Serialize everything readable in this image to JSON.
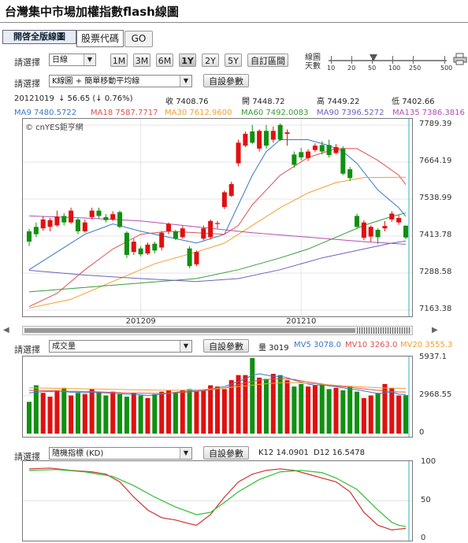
{
  "title": "台灣集中市場加權指數flash線圖",
  "tabs": {
    "active": "開啓全版線圖",
    "code": "股票代碼",
    "go": "GO"
  },
  "controls": {
    "select_label": "請選擇",
    "period_value": "日線",
    "range_buttons": [
      "1M",
      "3M",
      "6M",
      "1Y",
      "2Y",
      "5Y",
      "自訂區間"
    ],
    "active_range": "1Y",
    "days_label_1": "線圖",
    "days_label_2": "天數",
    "days_ticks": [
      "10",
      "20",
      "50",
      "100",
      "250",
      "500"
    ],
    "days_selected": "50",
    "indicator_value": "K線圖 + 簡單移動平均線",
    "param_button": "自設參數"
  },
  "quote": {
    "date": "20121019",
    "change": "↓ 56.65 (↓ 0.76%)",
    "close_label": "收",
    "close": "7408.76",
    "open_label": "開",
    "open": "7448.72",
    "high_label": "高",
    "high": "7449.22",
    "low_label": "低",
    "low": "7402.66"
  },
  "ma_legend": [
    {
      "label": "MA9 7480.5722",
      "color": "#3a78c8"
    },
    {
      "label": "MA18 7587.7717",
      "color": "#e05050"
    },
    {
      "label": "MA30 7612.9600",
      "color": "#f0a030"
    },
    {
      "label": "MA60 7492.0083",
      "color": "#3a9a3a"
    },
    {
      "label": "MA90 7396.5272",
      "color": "#7060c0"
    },
    {
      "label": "MA135 7386.3816",
      "color": "#b050b0"
    }
  ],
  "watermark": "© cnYES鉅亨網",
  "price_axis": [
    "7789.39",
    "7664.19",
    "7538.99",
    "7413.78",
    "7288.58",
    "7163.38"
  ],
  "price_range": [
    7163.38,
    7789.39
  ],
  "x_labels": [
    "201209",
    "201210"
  ],
  "candles": [
    [
      7430,
      7395,
      7438,
      7380
    ],
    [
      7445,
      7420,
      7460,
      7410
    ],
    [
      7440,
      7470,
      7480,
      7432
    ],
    [
      7445,
      7468,
      7475,
      7430
    ],
    [
      7450,
      7480,
      7500,
      7445
    ],
    [
      7482,
      7460,
      7492,
      7450
    ],
    [
      7460,
      7500,
      7510,
      7455
    ],
    [
      7470,
      7430,
      7475,
      7420
    ],
    [
      7430,
      7460,
      7470,
      7425
    ],
    [
      7478,
      7500,
      7510,
      7470
    ],
    [
      7500,
      7482,
      7510,
      7474
    ],
    [
      7478,
      7468,
      7488,
      7460
    ],
    [
      7470,
      7488,
      7498,
      7465
    ],
    [
      7495,
      7445,
      7500,
      7440
    ],
    [
      7425,
      7350,
      7430,
      7340
    ],
    [
      7360,
      7395,
      7405,
      7350
    ],
    [
      7372,
      7352,
      7380,
      7345
    ],
    [
      7355,
      7385,
      7392,
      7350
    ],
    [
      7388,
      7365,
      7395,
      7355
    ],
    [
      7375,
      7425,
      7430,
      7365
    ],
    [
      7430,
      7455,
      7460,
      7420
    ],
    [
      7430,
      7405,
      7435,
      7400
    ],
    [
      7410,
      7440,
      7448,
      7405
    ],
    [
      7372,
      7312,
      7380,
      7305
    ],
    [
      7318,
      7360,
      7365,
      7312
    ],
    [
      7405,
      7440,
      7450,
      7400
    ],
    [
      7410,
      7465,
      7470,
      7402
    ],
    [
      7455,
      7458,
      7465,
      7440
    ],
    [
      7512,
      7562,
      7568,
      7505
    ],
    [
      7550,
      7590,
      7598,
      7546
    ],
    [
      7660,
      7730,
      7740,
      7650
    ],
    [
      7720,
      7760,
      7768,
      7715
    ],
    [
      7768,
      7730,
      7790,
      7725
    ],
    [
      7710,
      7770,
      7775,
      7700
    ],
    [
      7770,
      7720,
      7790,
      7710
    ],
    [
      7740,
      7770,
      7785,
      7730
    ],
    [
      7790,
      7740,
      7795,
      7735
    ],
    [
      7760,
      7765,
      7775,
      7720
    ],
    [
      7690,
      7655,
      7700,
      7645
    ],
    [
      7698,
      7680,
      7712,
      7670
    ],
    [
      7678,
      7700,
      7708,
      7668
    ],
    [
      7705,
      7720,
      7728,
      7698
    ],
    [
      7722,
      7700,
      7735,
      7690
    ],
    [
      7722,
      7688,
      7740,
      7680
    ],
    [
      7695,
      7715,
      7725,
      7690
    ],
    [
      7710,
      7625,
      7718,
      7620
    ],
    [
      7640,
      7610,
      7648,
      7600
    ],
    [
      7482,
      7445,
      7490,
      7440
    ],
    [
      7408,
      7460,
      7468,
      7400
    ],
    [
      7412,
      7445,
      7450,
      7395
    ],
    [
      7435,
      7410,
      7440,
      7388
    ],
    [
      7440,
      7448,
      7465,
      7430
    ],
    [
      7470,
      7490,
      7498,
      7462
    ],
    [
      7460,
      7475,
      7485,
      7452
    ],
    [
      7449,
      7409,
      7450,
      7403
    ]
  ],
  "ma_series": [
    {
      "name": "MA9",
      "color": "#3a78c8",
      "pts": [
        [
          0,
          7300
        ],
        [
          4,
          7360
        ],
        [
          8,
          7420
        ],
        [
          12,
          7455
        ],
        [
          16,
          7430
        ],
        [
          20,
          7410
        ],
        [
          24,
          7390
        ],
        [
          28,
          7420
        ],
        [
          30,
          7520
        ],
        [
          32,
          7620
        ],
        [
          34,
          7700
        ],
        [
          36,
          7740
        ],
        [
          40,
          7740
        ],
        [
          43,
          7720
        ],
        [
          45,
          7700
        ],
        [
          47,
          7660
        ],
        [
          50,
          7570
        ],
        [
          53,
          7510
        ],
        [
          54,
          7480
        ]
      ]
    },
    {
      "name": "MA18",
      "color": "#e05050",
      "pts": [
        [
          0,
          7175
        ],
        [
          4,
          7220
        ],
        [
          8,
          7300
        ],
        [
          12,
          7370
        ],
        [
          16,
          7420
        ],
        [
          20,
          7430
        ],
        [
          24,
          7425
        ],
        [
          28,
          7420
        ],
        [
          30,
          7450
        ],
        [
          32,
          7520
        ],
        [
          36,
          7620
        ],
        [
          40,
          7680
        ],
        [
          44,
          7710
        ],
        [
          47,
          7710
        ],
        [
          50,
          7670
        ],
        [
          53,
          7620
        ],
        [
          54,
          7588
        ]
      ]
    },
    {
      "name": "MA30",
      "color": "#f0a030",
      "pts": [
        [
          0,
          7170
        ],
        [
          6,
          7200
        ],
        [
          12,
          7260
        ],
        [
          18,
          7320
        ],
        [
          24,
          7360
        ],
        [
          28,
          7390
        ],
        [
          32,
          7450
        ],
        [
          36,
          7510
        ],
        [
          40,
          7560
        ],
        [
          44,
          7595
        ],
        [
          48,
          7612
        ],
        [
          54,
          7613
        ]
      ]
    },
    {
      "name": "MA60",
      "color": "#3a9a3a",
      "pts": [
        [
          0,
          7225
        ],
        [
          8,
          7240
        ],
        [
          16,
          7255
        ],
        [
          24,
          7270
        ],
        [
          30,
          7300
        ],
        [
          36,
          7340
        ],
        [
          40,
          7370
        ],
        [
          44,
          7410
        ],
        [
          48,
          7450
        ],
        [
          52,
          7480
        ],
        [
          54,
          7492
        ]
      ]
    },
    {
      "name": "MA90",
      "color": "#7060c0",
      "pts": [
        [
          0,
          7298
        ],
        [
          8,
          7282
        ],
        [
          16,
          7270
        ],
        [
          24,
          7260
        ],
        [
          30,
          7270
        ],
        [
          36,
          7300
        ],
        [
          42,
          7340
        ],
        [
          48,
          7370
        ],
        [
          52,
          7390
        ],
        [
          54,
          7397
        ]
      ]
    },
    {
      "name": "MA135",
      "color": "#b050b0",
      "pts": [
        [
          0,
          7482
        ],
        [
          8,
          7475
        ],
        [
          16,
          7465
        ],
        [
          24,
          7445
        ],
        [
          32,
          7425
        ],
        [
          40,
          7410
        ],
        [
          48,
          7395
        ],
        [
          54,
          7386
        ]
      ]
    }
  ],
  "volume": {
    "select_value": "成交量",
    "param_button": "自設參數",
    "legend": [
      {
        "label": "量 3019",
        "color": "#222"
      },
      {
        "label": "MV5 3078.0",
        "color": "#3a78c8"
      },
      {
        "label": "MV10 3263.0",
        "color": "#e05050"
      },
      {
        "label": "MV20 3555.3",
        "color": "#f0a030"
      }
    ],
    "axis": [
      "5937.1",
      "2968.55",
      "0"
    ],
    "max": 5937.1,
    "values": [
      2500,
      3800,
      3200,
      2900,
      3400,
      3600,
      3000,
      3200,
      3100,
      3500,
      3300,
      3000,
      3300,
      3100,
      2900,
      3200,
      3000,
      2800,
      3100,
      3300,
      3400,
      3200,
      3400,
      3500,
      3300,
      3400,
      3800,
      3700,
      3500,
      4200,
      4600,
      4600,
      5937,
      4400,
      4300,
      4700,
      4600,
      4200,
      3700,
      3900,
      3700,
      3800,
      3900,
      3500,
      3600,
      3400,
      3700,
      3300,
      2800,
      3000,
      3200,
      3900,
      3600,
      3000,
      3019
    ],
    "mv5": [
      3200,
      3250,
      3300,
      3300,
      3350,
      3300,
      3250,
      3250,
      3200,
      3250,
      3200,
      3200,
      3150,
      3150,
      3100,
      3100,
      3050,
      3000,
      3050,
      3100,
      3150,
      3250,
      3300,
      3350,
      3350,
      3400,
      3500,
      3600,
      3700,
      3900,
      4100,
      4300,
      4600,
      4700,
      4600,
      4500,
      4500,
      4400,
      4200,
      4050,
      3900,
      3800,
      3850,
      3750,
      3700,
      3600,
      3500,
      3450,
      3350,
      3250,
      3150,
      3200,
      3250,
      3100,
      3078
    ],
    "mv10": [
      3400,
      3400,
      3380,
      3380,
      3360,
      3340,
      3330,
      3320,
      3300,
      3300,
      3280,
      3260,
      3240,
      3220,
      3200,
      3190,
      3180,
      3170,
      3160,
      3160,
      3170,
      3200,
      3240,
      3280,
      3320,
      3370,
      3430,
      3500,
      3600,
      3720,
      3850,
      3980,
      4100,
      4200,
      4250,
      4300,
      4320,
      4300,
      4250,
      4150,
      4050,
      3980,
      3900,
      3820,
      3750,
      3700,
      3640,
      3580,
      3520,
      3460,
      3400,
      3350,
      3300,
      3280,
      3263
    ],
    "mv20": [
      3600,
      3590,
      3580,
      3570,
      3560,
      3550,
      3540,
      3530,
      3520,
      3510,
      3500,
      3490,
      3480,
      3470,
      3460,
      3450,
      3440,
      3430,
      3420,
      3415,
      3410,
      3410,
      3420,
      3430,
      3450,
      3470,
      3500,
      3540,
      3580,
      3630,
      3690,
      3750,
      3810,
      3870,
      3920,
      3960,
      3990,
      4000,
      4000,
      3980,
      3950,
      3920,
      3880,
      3840,
      3800,
      3760,
      3720,
      3690,
      3660,
      3630,
      3600,
      3580,
      3570,
      3560,
      3555
    ]
  },
  "kd": {
    "select_value": "隨機指標 (KD)",
    "param_button": "自設參數",
    "legend": [
      {
        "label": "K12 14.0901",
        "color": "#d03030"
      },
      {
        "label": "D12 16.5478",
        "color": "#30c030"
      }
    ],
    "axis": [
      "100",
      "50",
      "0"
    ],
    "k": [
      [
        0,
        92
      ],
      [
        3,
        93
      ],
      [
        6,
        90
      ],
      [
        9,
        88
      ],
      [
        11,
        85
      ],
      [
        13,
        75
      ],
      [
        15,
        55
      ],
      [
        17,
        38
      ],
      [
        19,
        28
      ],
      [
        21,
        25
      ],
      [
        23,
        20
      ],
      [
        24,
        18
      ],
      [
        26,
        32
      ],
      [
        28,
        55
      ],
      [
        30,
        75
      ],
      [
        32,
        85
      ],
      [
        34,
        90
      ],
      [
        36,
        92
      ],
      [
        38,
        90
      ],
      [
        40,
        85
      ],
      [
        42,
        80
      ],
      [
        44,
        75
      ],
      [
        46,
        62
      ],
      [
        48,
        35
      ],
      [
        50,
        18
      ],
      [
        52,
        12
      ],
      [
        54,
        14
      ]
    ],
    "d": [
      [
        0,
        90
      ],
      [
        4,
        91
      ],
      [
        8,
        88
      ],
      [
        12,
        82
      ],
      [
        15,
        70
      ],
      [
        18,
        55
      ],
      [
        21,
        42
      ],
      [
        24,
        32
      ],
      [
        26,
        35
      ],
      [
        28,
        48
      ],
      [
        30,
        62
      ],
      [
        33,
        78
      ],
      [
        36,
        88
      ],
      [
        39,
        90
      ],
      [
        42,
        87
      ],
      [
        44,
        80
      ],
      [
        47,
        65
      ],
      [
        50,
        38
      ],
      [
        52,
        22
      ],
      [
        53,
        18
      ],
      [
        54,
        16.5
      ]
    ]
  }
}
